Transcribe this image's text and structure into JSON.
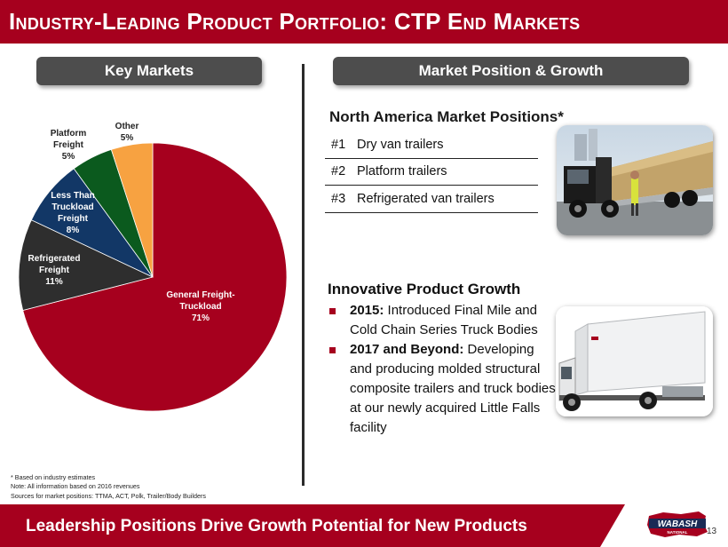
{
  "header": {
    "title": "Industry-Leading Product Portfolio: CTP End Markets"
  },
  "left_panel": {
    "label": "Key Markets"
  },
  "right_panel": {
    "label": "Market Position & Growth"
  },
  "chart_data": {
    "type": "pie",
    "slices": [
      {
        "name": "General Freight-Truckload",
        "label_lines": [
          "General Freight-",
          "Truckload"
        ],
        "value_label": "71%",
        "value": 71,
        "color": "#a6001e"
      },
      {
        "name": "Refrigerated Freight",
        "label_lines": [
          "Refrigerated",
          "Freight"
        ],
        "value_label": "11%",
        "value": 11,
        "color": "#2e2e2e"
      },
      {
        "name": "Less Than Truckload Freight",
        "label_lines": [
          "Less Than",
          "Truckload",
          "Freight"
        ],
        "value_label": "8%",
        "value": 8,
        "color": "#123766"
      },
      {
        "name": "Platform Freight",
        "label_lines": [
          "Platform",
          "Freight"
        ],
        "value_label": "5%",
        "value": 5,
        "color": "#0b5a1e"
      },
      {
        "name": "Other",
        "label_lines": [
          "Other"
        ],
        "value_label": "5%",
        "value": 5,
        "color": "#f7a241"
      }
    ]
  },
  "market_positions": {
    "heading": "North America Market Positions*",
    "rows": [
      {
        "rank": "#1",
        "label": "Dry van trailers"
      },
      {
        "rank": "#2",
        "label": "Platform trailers"
      },
      {
        "rank": "#3",
        "label": "Refrigerated van trailers"
      }
    ]
  },
  "innovation": {
    "heading": "Innovative Product Growth",
    "bullets": [
      {
        "bold": "2015:",
        "text": " Introduced Final Mile and Cold Chain Series Truck Bodies"
      },
      {
        "bold": "2017 and Beyond:",
        "text": " Developing and producing molded structural composite trailers and truck bodies at our newly acquired Little Falls facility"
      }
    ]
  },
  "footnotes": [
    "* Based on industry estimates",
    "Note: All information based on 2016 revenues",
    "Sources for market positions: TTMA, ACT, Polk, Trailer/Body Builders"
  ],
  "footer": {
    "tagline": "Leadership Positions Drive Growth Potential for New Products",
    "page": "13",
    "logo_text": "WABASH",
    "logo_subtext": "NATIONAL"
  },
  "colors": {
    "brand_red": "#a6001e",
    "pill_gray": "#4d4d4d"
  }
}
